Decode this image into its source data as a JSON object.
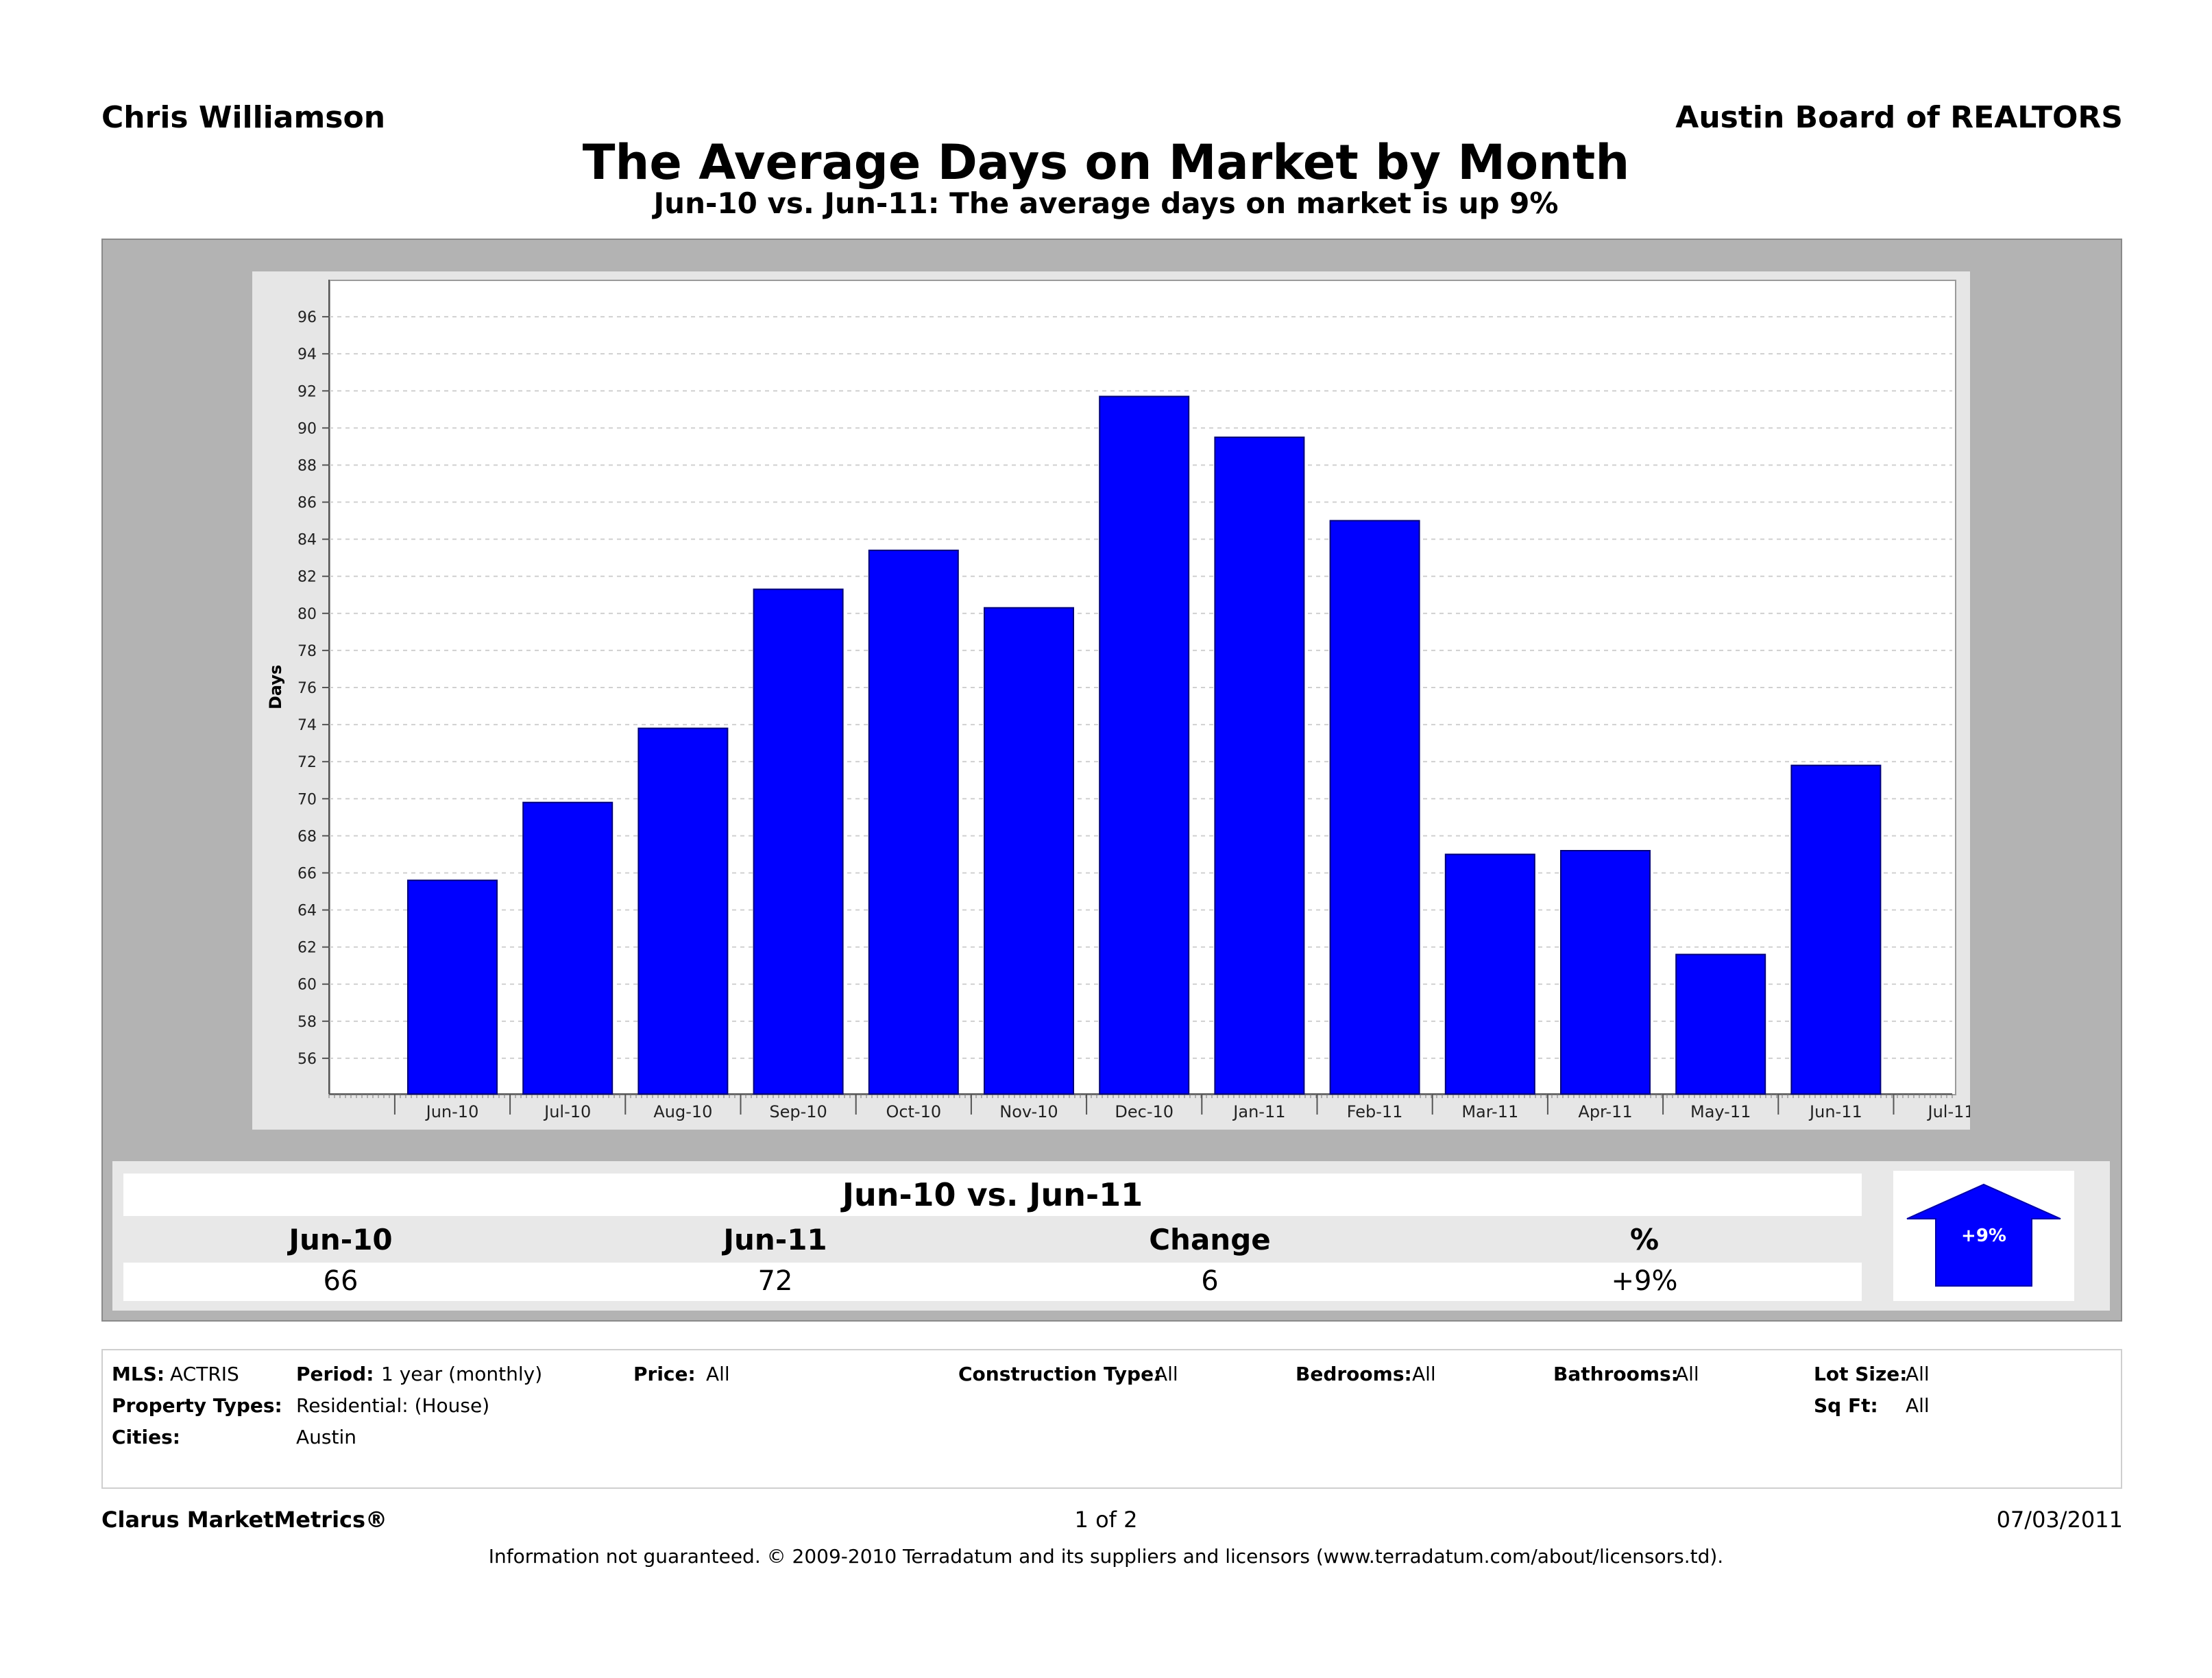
{
  "header": {
    "agent": "Chris Williamson",
    "board": "Austin Board of REALTORS"
  },
  "title": "The Average Days on Market by Month",
  "subtitle": "Jun-10 vs. Jun-11:  The average days on market is up 9%",
  "chart_data": {
    "type": "bar",
    "categories": [
      "Jun-10",
      "Jul-10",
      "Aug-10",
      "Sep-10",
      "Oct-10",
      "Nov-10",
      "Dec-10",
      "Jan-11",
      "Feb-11",
      "Mar-11",
      "Apr-11",
      "May-11",
      "Jun-11",
      "Jul-11"
    ],
    "values": [
      65.6,
      69.8,
      73.8,
      81.3,
      83.4,
      80.3,
      91.7,
      89.5,
      85.0,
      67.0,
      67.2,
      61.6,
      71.8,
      null
    ],
    "ylabel": "Days",
    "xlabel": "",
    "ylim": [
      54,
      98
    ],
    "yticks": [
      56,
      58,
      60,
      62,
      64,
      66,
      68,
      70,
      72,
      74,
      76,
      78,
      80,
      82,
      84,
      86,
      88,
      90,
      92,
      94,
      96
    ],
    "bar_color": "#0000ff",
    "grid": true
  },
  "summary": {
    "title": "Jun-10 vs. Jun-11",
    "columns": [
      "Jun-10",
      "Jun-11",
      "Change",
      "%"
    ],
    "values": [
      "66",
      "72",
      "6",
      "+9%"
    ],
    "badge": "+9%",
    "badge_color": "#0000ff"
  },
  "filters": {
    "mls_label": "MLS:",
    "mls_value": "ACTRIS",
    "period_label": "Period:",
    "period_value": "1 year (monthly)",
    "price_label": "Price:",
    "price_value": "All",
    "construction_label": "Construction Type:",
    "construction_value": "All",
    "bedrooms_label": "Bedrooms:",
    "bedrooms_value": "All",
    "bathrooms_label": "Bathrooms:",
    "bathrooms_value": "All",
    "lotsize_label": "Lot Size:",
    "lotsize_value": "All",
    "proptype_label": "Property Types:",
    "proptype_value": "Residential: (House)",
    "sqft_label": "Sq Ft:",
    "sqft_value": "All",
    "cities_label": "Cities:",
    "cities_value": "Austin"
  },
  "footer": {
    "brand": "Clarus MarketMetrics®",
    "page": "1 of 2",
    "date": "07/03/2011",
    "disclaimer": "Information not guaranteed.  © 2009-2010 Terradatum and its suppliers and licensors (www.terradatum.com/about/licensors.td)."
  }
}
